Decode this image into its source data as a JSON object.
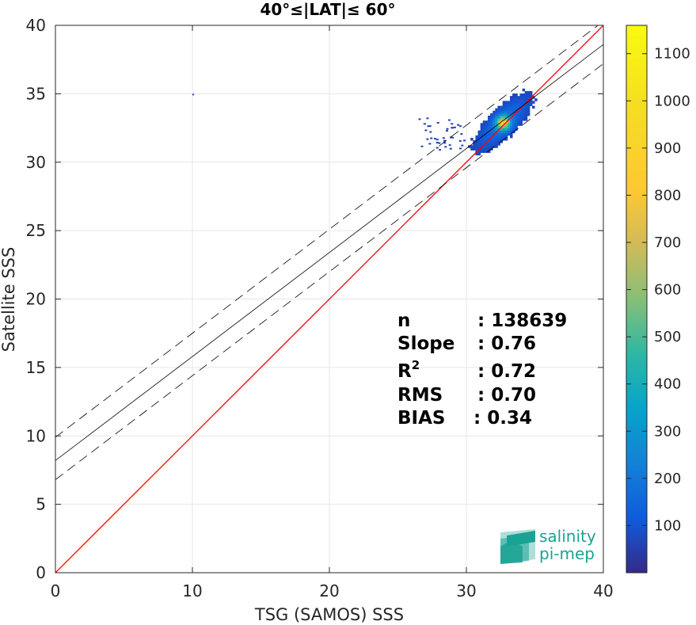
{
  "chart_data": {
    "type": "heatmap",
    "title": "40°≤|LAT|≤ 60°",
    "xlabel": "TSG (SAMOS) SSS",
    "ylabel": "Satellite SSS",
    "xlim": [
      0,
      40
    ],
    "ylim": [
      0,
      40
    ],
    "xticks": [
      "0",
      "10",
      "20",
      "30",
      "40"
    ],
    "yticks": [
      "0",
      "5",
      "10",
      "15",
      "20",
      "25",
      "30",
      "35",
      "40"
    ],
    "grid": true,
    "colorbar": {
      "range": [
        0,
        1160
      ],
      "ticks": [
        "100",
        "200",
        "300",
        "400",
        "500",
        "600",
        "700",
        "800",
        "900",
        "1000",
        "1100"
      ],
      "colormap": "parula"
    },
    "density_cluster": {
      "x_range": [
        28.5,
        36.5
      ],
      "y_range": [
        29.8,
        36.5
      ],
      "peak": [
        32.6,
        32.8
      ],
      "peak_count": 1160
    },
    "lines": [
      {
        "name": "identity",
        "color": "#ff0000",
        "style": "solid",
        "slope": 1.0,
        "intercept": 0.0
      },
      {
        "name": "fit",
        "color": "#000000",
        "style": "solid",
        "slope": 0.76,
        "intercept": 8.2
      },
      {
        "name": "fit+std",
        "color": "#000000",
        "style": "dashed",
        "slope": 0.76,
        "intercept": 9.9
      },
      {
        "name": "fit-std",
        "color": "#000000",
        "style": "dashed",
        "slope": 0.76,
        "intercept": 6.8
      }
    ],
    "stats": [
      {
        "label": "n",
        "value": ": 138639"
      },
      {
        "label": "Slope",
        "value": ": 0.76"
      },
      {
        "label": "R",
        "sup": "2",
        "value": ": 0.72"
      },
      {
        "label": "RMS",
        "value": ": 0.70"
      },
      {
        "label": "BIAS",
        "value": ": 0.34"
      }
    ]
  },
  "logo": {
    "line1": "salinity",
    "line2": "pi-mep"
  }
}
